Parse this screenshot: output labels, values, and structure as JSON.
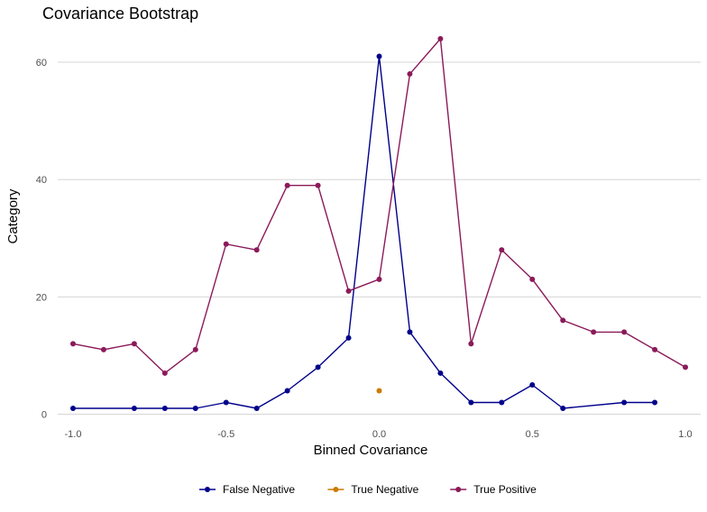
{
  "chart_data": {
    "type": "line",
    "title": "Covariance Bootstrap",
    "xlabel": "Binned Covariance",
    "ylabel": "Category",
    "xlim": [
      -1.05,
      1.05
    ],
    "ylim": [
      -1,
      66
    ],
    "xticks": [
      -1.0,
      -0.5,
      0.0,
      0.5,
      1.0
    ],
    "xtick_labels": [
      "-1.0",
      "-0.5",
      "0.0",
      "0.5",
      "1.0"
    ],
    "yticks": [
      0,
      20,
      40,
      60
    ],
    "ytick_labels": [
      "0",
      "20",
      "40",
      "60"
    ],
    "grid": "horizontal-major",
    "legend_position": "bottom",
    "series": [
      {
        "name": "False Negative",
        "color": "#00008b",
        "x": [
          -1.0,
          -0.8,
          -0.7,
          -0.6,
          -0.5,
          -0.4,
          -0.3,
          -0.2,
          -0.1,
          0.0,
          0.1,
          0.2,
          0.3,
          0.4,
          0.5,
          0.6,
          0.8,
          0.9
        ],
        "y": [
          1,
          1,
          1,
          1,
          2,
          1,
          4,
          8,
          13,
          61,
          14,
          7,
          2,
          2,
          5,
          1,
          2,
          2
        ]
      },
      {
        "name": "True Negative",
        "color": "#cc7a00",
        "x": [
          0.0
        ],
        "y": [
          4
        ]
      },
      {
        "name": "True Positive",
        "color": "#8b1a5a",
        "x": [
          -1.0,
          -0.9,
          -0.8,
          -0.7,
          -0.6,
          -0.5,
          -0.4,
          -0.3,
          -0.2,
          -0.1,
          0.0,
          0.1,
          0.2,
          0.3,
          0.4,
          0.5,
          0.6,
          0.7,
          0.8,
          0.9,
          1.0
        ],
        "y": [
          12,
          11,
          12,
          7,
          11,
          29,
          28,
          39,
          39,
          21,
          23,
          58,
          64,
          12,
          28,
          23,
          16,
          14,
          14,
          11,
          8
        ]
      }
    ]
  }
}
